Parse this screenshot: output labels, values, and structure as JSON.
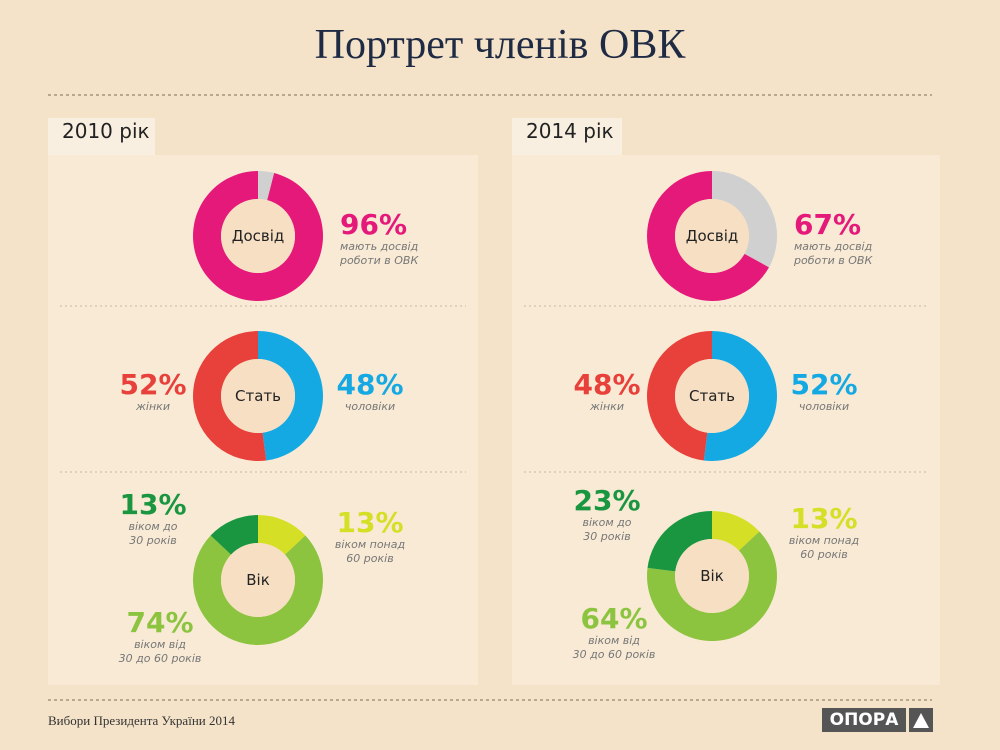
{
  "title": "Портрет членів ОВК",
  "panels": [
    "2010 рік",
    "2014 рік"
  ],
  "footer": "Вибори Президента України 2014",
  "logo": "ОПОРА",
  "chart_data": [
    {
      "type": "donut",
      "center": "Досвід",
      "categories": [
        null,
        "мають досвід\nроботи в ОВК"
      ],
      "values": [
        4,
        96
      ],
      "value_labels": [
        null,
        "96%"
      ],
      "colors": [
        "#d0d0d0",
        "#e5197a"
      ]
    },
    {
      "type": "donut",
      "center": "Стать",
      "categories": [
        "чоловіки",
        "жінки"
      ],
      "values": [
        48,
        52
      ],
      "value_labels": [
        "48%",
        "52%"
      ],
      "colors": [
        "#15a9e4",
        "#e8403a"
      ]
    },
    {
      "type": "donut",
      "center": "Вік",
      "categories": [
        "віком понад\n60 років",
        "віком від\n30 до 60 років",
        "віком до\n30 років"
      ],
      "values": [
        13,
        74,
        13
      ],
      "value_labels": [
        "13%",
        "74%",
        "13%"
      ],
      "colors": [
        "#d4df26",
        "#8cc43f",
        "#1a9640"
      ]
    },
    {
      "type": "donut",
      "center": "Досвід",
      "categories": [
        null,
        "мають досвід\nроботи в ОВК"
      ],
      "values": [
        33,
        67
      ],
      "value_labels": [
        null,
        "67%"
      ],
      "colors": [
        "#d0d0d0",
        "#e5197a"
      ]
    },
    {
      "type": "donut",
      "center": "Стать",
      "categories": [
        "чоловіки",
        "жінки"
      ],
      "values": [
        52,
        48
      ],
      "value_labels": [
        "52%",
        "48%"
      ],
      "colors": [
        "#15a9e4",
        "#e8403a"
      ]
    },
    {
      "type": "donut",
      "center": "Вік",
      "categories": [
        "віком понад\n60 років",
        "віком від\n30 до 60 років",
        "віком до\n30 років"
      ],
      "values": [
        13,
        64,
        23
      ],
      "value_labels": [
        "13%",
        "64%",
        "23%"
      ],
      "colors": [
        "#d4df26",
        "#8cc43f",
        "#1a9640"
      ]
    }
  ]
}
